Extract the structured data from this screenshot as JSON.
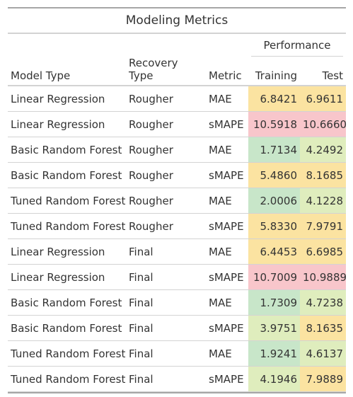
{
  "title": "Modeling Metrics",
  "spanner_label": "Performance",
  "columns": {
    "model_type": "Model Type",
    "recovery_type": "Recovery Type",
    "metric": "Metric",
    "training": "Training",
    "test": "Test"
  },
  "colors": {
    "green": "#c8e6c9",
    "yellow_green": "#dfedbd",
    "yellow": "#fbe3a1",
    "pink": "#f8c6cb"
  },
  "rows": [
    {
      "model": "Linear Regression",
      "recovery": "Rougher",
      "metric": "MAE",
      "training": "6.8421",
      "test": "6.9611",
      "training_color": "#fbe3a1",
      "test_color": "#fbe3a1"
    },
    {
      "model": "Linear Regression",
      "recovery": "Rougher",
      "metric": "sMAPE",
      "training": "10.5918",
      "test": "10.6660",
      "training_color": "#f8c6cb",
      "test_color": "#f8c6cb"
    },
    {
      "model": "Basic Random Forest",
      "recovery": "Rougher",
      "metric": "MAE",
      "training": "1.7134",
      "test": "4.2492",
      "training_color": "#c8e6c9",
      "test_color": "#dfedbd"
    },
    {
      "model": "Basic Random Forest",
      "recovery": "Rougher",
      "metric": "sMAPE",
      "training": "5.4860",
      "test": "8.1685",
      "training_color": "#fbe3a1",
      "test_color": "#fbe3a1"
    },
    {
      "model": "Tuned Random Forest",
      "recovery": "Rougher",
      "metric": "MAE",
      "training": "2.0006",
      "test": "4.1228",
      "training_color": "#c8e6c9",
      "test_color": "#dfedbd"
    },
    {
      "model": "Tuned Random Forest",
      "recovery": "Rougher",
      "metric": "sMAPE",
      "training": "5.8330",
      "test": "7.9791",
      "training_color": "#fbe3a1",
      "test_color": "#fbe3a1"
    },
    {
      "model": "Linear Regression",
      "recovery": "Final",
      "metric": "MAE",
      "training": "6.4453",
      "test": "6.6985",
      "training_color": "#fbe3a1",
      "test_color": "#fbe3a1"
    },
    {
      "model": "Linear Regression",
      "recovery": "Final",
      "metric": "sMAPE",
      "training": "10.7009",
      "test": "10.9889",
      "training_color": "#f8c6cb",
      "test_color": "#f8c6cb"
    },
    {
      "model": "Basic Random Forest",
      "recovery": "Final",
      "metric": "MAE",
      "training": "1.7309",
      "test": "4.7238",
      "training_color": "#c8e6c9",
      "test_color": "#dfedbd"
    },
    {
      "model": "Basic Random Forest",
      "recovery": "Final",
      "metric": "sMAPE",
      "training": "3.9751",
      "test": "8.1635",
      "training_color": "#dfedbd",
      "test_color": "#fbe3a1"
    },
    {
      "model": "Tuned Random Forest",
      "recovery": "Final",
      "metric": "MAE",
      "training": "1.9241",
      "test": "4.6137",
      "training_color": "#c8e6c9",
      "test_color": "#dfedbd"
    },
    {
      "model": "Tuned Random Forest",
      "recovery": "Final",
      "metric": "sMAPE",
      "training": "4.1946",
      "test": "7.9889",
      "training_color": "#dfedbd",
      "test_color": "#fbe3a1"
    }
  ]
}
